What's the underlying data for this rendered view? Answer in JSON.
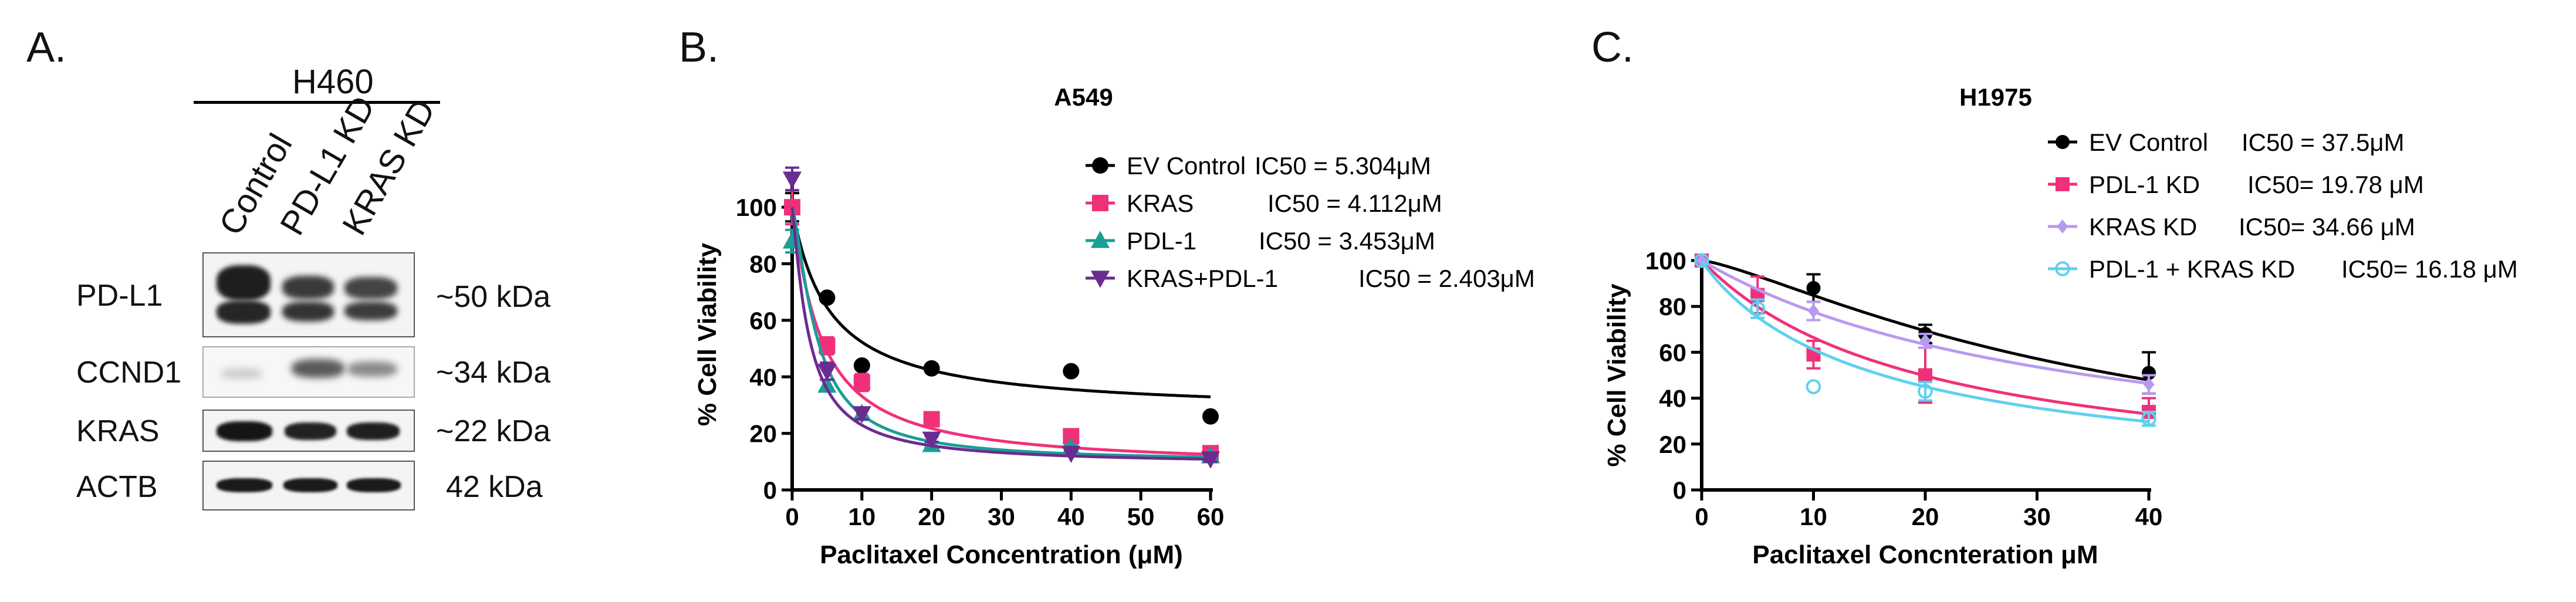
{
  "panels": {
    "a": {
      "letter": "A.",
      "cell_line": "H460",
      "lanes": [
        "Control",
        "PD-L1 KD",
        "KRAS KD"
      ],
      "blots": [
        {
          "protein": "PD-L1",
          "size": "~50 kDa"
        },
        {
          "protein": "CCND1",
          "size": "~34 kDa"
        },
        {
          "protein": "KRAS",
          "size": "~22 kDa"
        },
        {
          "protein": "ACTB",
          "size": "42 kDa"
        }
      ]
    },
    "b": {
      "letter": "B."
    },
    "c": {
      "letter": "C."
    }
  },
  "chart_data": [
    {
      "type": "scatter",
      "title": "A549",
      "xlabel": "Paclitaxel Concentration (μM)",
      "ylabel": "% Cell Viability",
      "xlim": [
        0,
        60
      ],
      "ylim": [
        0,
        110
      ],
      "xticks": [
        0,
        10,
        20,
        30,
        40,
        50,
        60
      ],
      "yticks": [
        0,
        20,
        40,
        60,
        80,
        100
      ],
      "series": [
        {
          "name": "EV Control",
          "ic50_label": "IC50 = 5.304μM",
          "color": "#000000",
          "marker": "circle",
          "x": [
            0,
            5,
            10,
            20,
            40,
            60
          ],
          "y": [
            100,
            68,
            44,
            43,
            42,
            26
          ],
          "err": [
            5,
            0,
            0,
            0,
            0,
            0
          ],
          "fit": {
            "ic50": 5.304,
            "bottom": 27,
            "top": 100,
            "hill": 1.0
          }
        },
        {
          "name": "KRAS",
          "ic50_label": "IC50 = 4.112μM",
          "color": "#f0317a",
          "marker": "square",
          "x": [
            0,
            5,
            10,
            20,
            40,
            60
          ],
          "y": [
            100,
            51,
            38,
            25,
            19,
            13
          ],
          "err": [
            6,
            3,
            3,
            2,
            2,
            1
          ],
          "fit": {
            "ic50": 4.112,
            "bottom": 8,
            "top": 100,
            "hill": 1.1
          }
        },
        {
          "name": "PDL-1",
          "ic50_label": "IC50 = 3.453μM",
          "color": "#1a9e96",
          "marker": "triangle-up",
          "x": [
            0,
            5,
            10,
            20,
            40,
            60
          ],
          "y": [
            88,
            37,
            27,
            16,
            15,
            12
          ],
          "err": [
            4,
            2,
            2,
            1,
            1,
            1
          ],
          "fit": {
            "ic50": 3.453,
            "bottom": 10,
            "top": 100,
            "hill": 1.4
          }
        },
        {
          "name": "KRAS+PDL-1",
          "ic50_label": "IC50 = 2.403μM",
          "color": "#6a2c91",
          "marker": "triangle-down",
          "x": [
            0,
            5,
            10,
            20,
            40,
            60
          ],
          "y": [
            110,
            42,
            27,
            18,
            13,
            11
          ],
          "err": [
            4,
            3,
            2,
            1,
            1,
            1
          ],
          "fit": {
            "ic50": 2.403,
            "bottom": 9,
            "top": 100,
            "hill": 1.2
          }
        }
      ]
    },
    {
      "type": "scatter",
      "title": "H1975",
      "xlabel": "Paclitaxel Concnteration μM",
      "ylabel": "% Cell Viability",
      "xlim": [
        0,
        40
      ],
      "ylim": [
        0,
        100
      ],
      "xticks": [
        0,
        10,
        20,
        30,
        40
      ],
      "yticks": [
        0,
        20,
        40,
        60,
        80,
        100
      ],
      "series": [
        {
          "name": "EV Control",
          "ic50_label": "IC50 = 37.5μM",
          "color": "#000000",
          "marker": "circle",
          "x": [
            0,
            10,
            20,
            40
          ],
          "y": [
            100,
            88,
            68,
            51
          ],
          "err": [
            0,
            6,
            4,
            9
          ],
          "fit": {
            "ic50": 37.5,
            "hill": 1.3
          }
        },
        {
          "name": "PDL-1 KD",
          "ic50_label": "IC50= 19.78 μM",
          "color": "#f0317a",
          "marker": "square",
          "x": [
            0,
            5,
            10,
            20,
            40
          ],
          "y": [
            100,
            85,
            59,
            50,
            34
          ],
          "err": [
            0,
            8,
            6,
            12,
            6
          ],
          "fit": {
            "ic50": 19.78,
            "hill": 1.0
          }
        },
        {
          "name": "KRAS KD",
          "ic50_label": "IC50= 34.66 μM",
          "color": "#b79af0",
          "marker": "diamond",
          "x": [
            0,
            10,
            20,
            40
          ],
          "y": [
            100,
            78,
            65,
            46
          ],
          "err": [
            0,
            4,
            3,
            4
          ],
          "fit": {
            "ic50": 34.66,
            "hill": 1.0
          }
        },
        {
          "name": "PDL-1 + KRAS KD",
          "ic50_label": "IC50= 16.18 μM",
          "color": "#5fd0ef",
          "marker": "circle-open",
          "x": [
            0,
            5,
            10,
            20,
            40
          ],
          "y": [
            100,
            79,
            45,
            43,
            31
          ],
          "err": [
            0,
            4,
            0,
            4,
            3
          ],
          "fit": {
            "ic50": 16.18,
            "hill": 0.95
          }
        }
      ]
    }
  ]
}
